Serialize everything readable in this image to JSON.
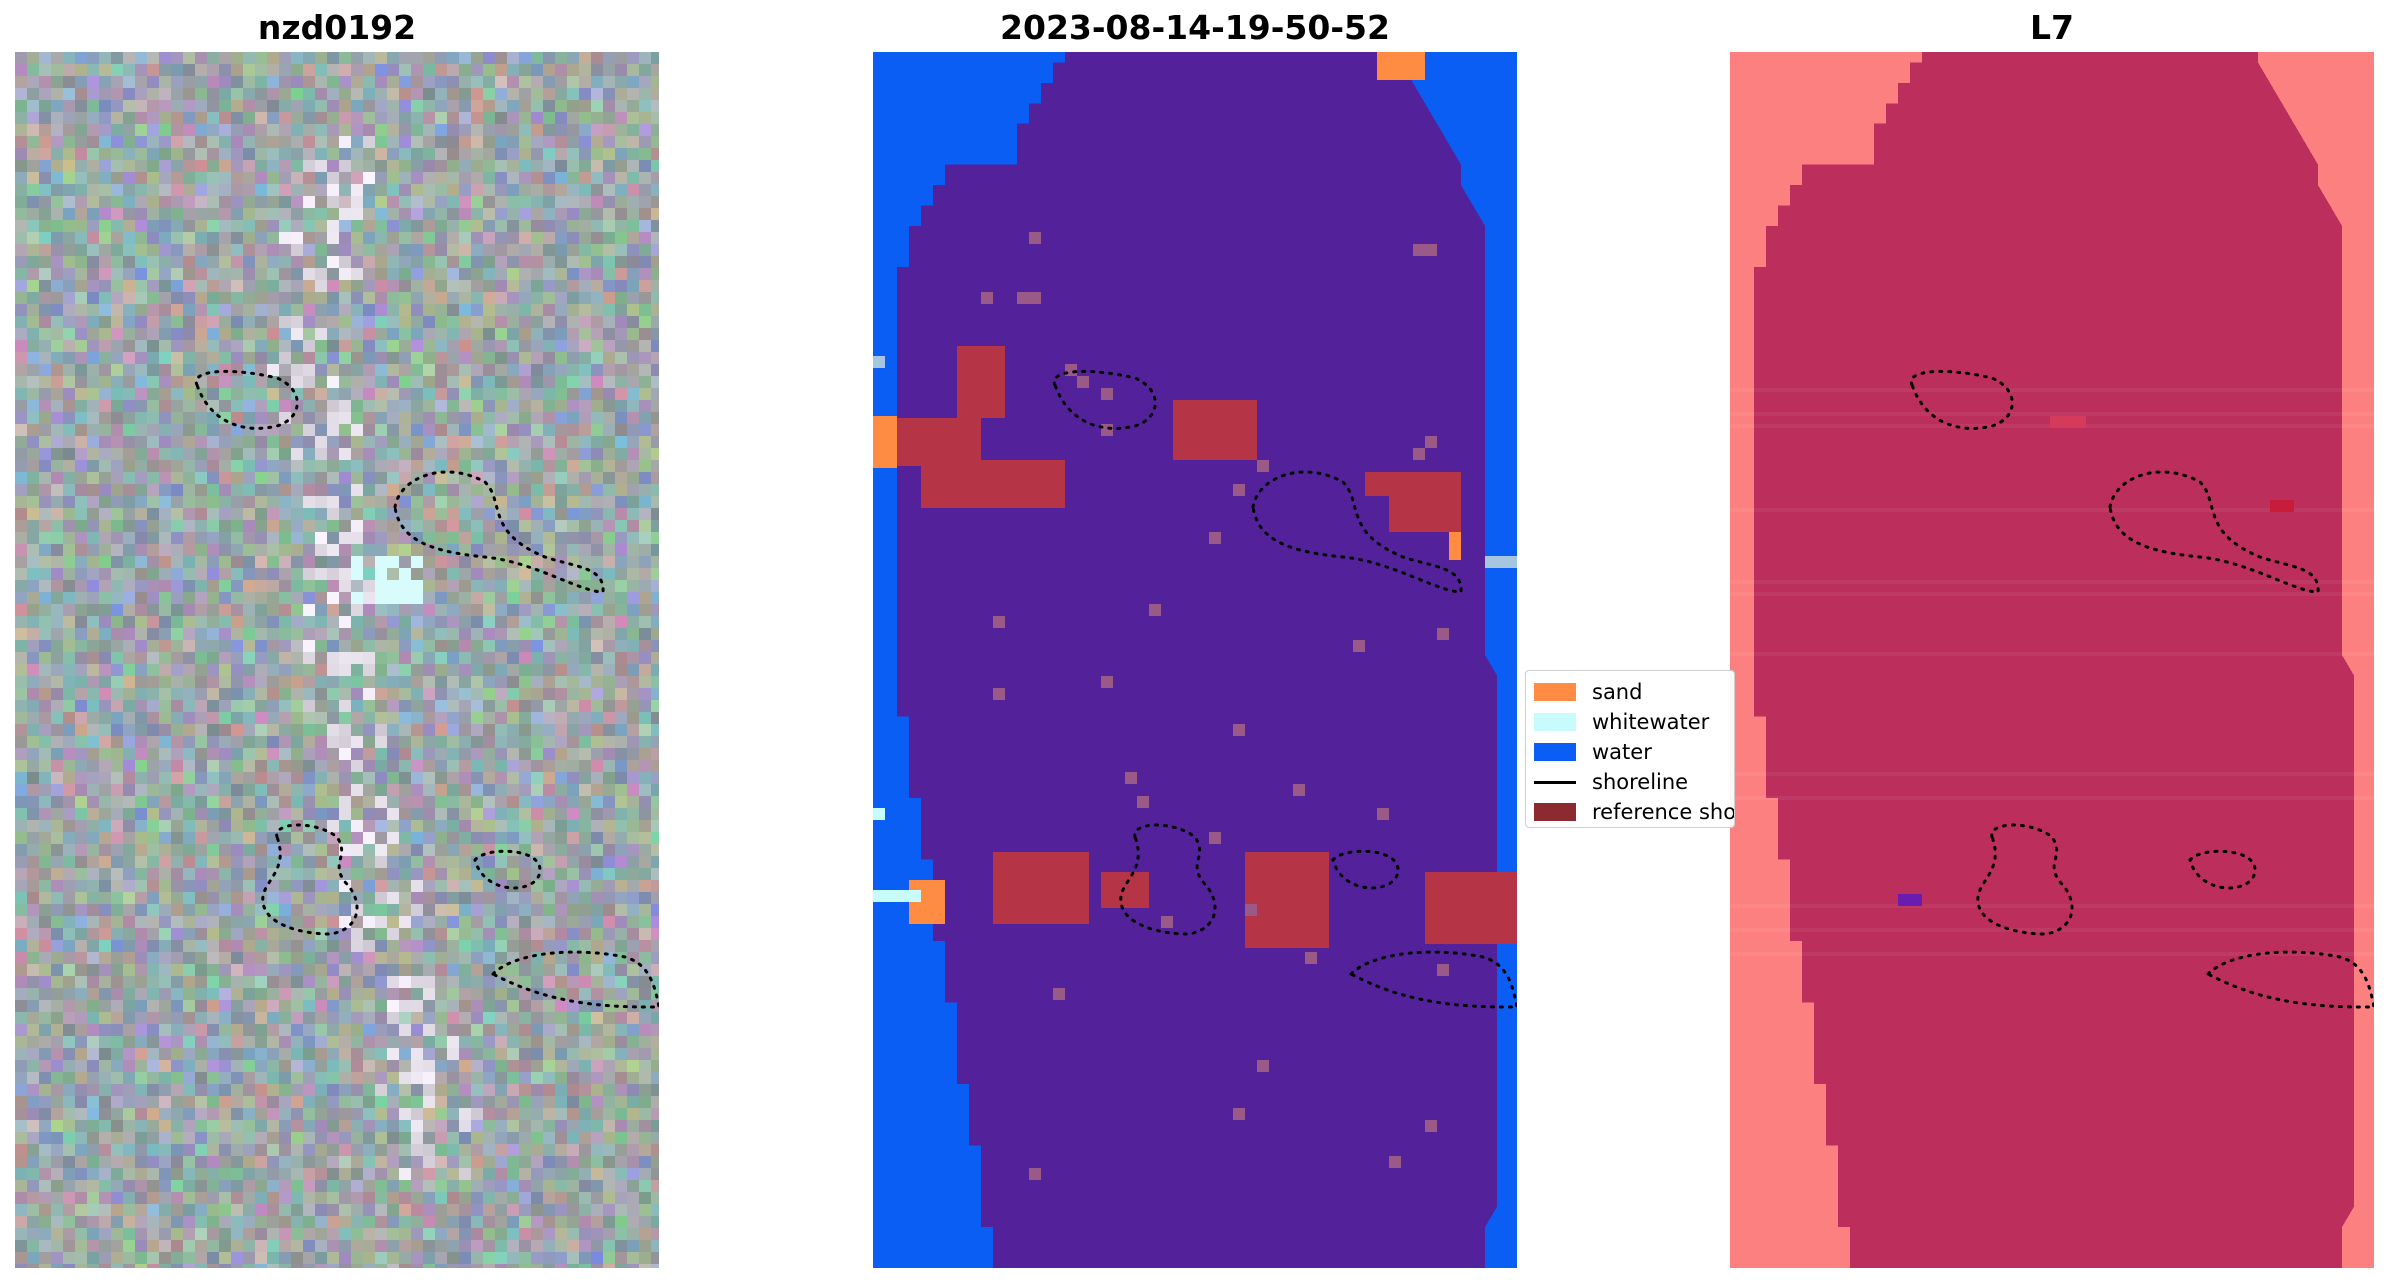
{
  "panels": [
    {
      "title": "nzd0192"
    },
    {
      "title": "2023-08-14-19-50-52"
    },
    {
      "title": "L7"
    }
  ],
  "legend": {
    "items": [
      {
        "label": "sand",
        "color": "#ff8c42",
        "type": "swatch"
      },
      {
        "label": "whitewater",
        "color": "#c8fbfb",
        "type": "swatch"
      },
      {
        "label": "water",
        "color": "#0b5ef3",
        "type": "swatch"
      },
      {
        "label": "shoreline",
        "color": "#000000",
        "type": "line"
      },
      {
        "label": "reference shoreline",
        "color": "#8b2a2f",
        "type": "swatch"
      }
    ]
  },
  "colors": {
    "class_sand": "#ff8c42",
    "class_whitewater": "#c8fbfb",
    "class_water": "#0b5ef3",
    "class_land": "#53229a",
    "class_shoreline_red": "#b53446",
    "l7_outside": "#fd8080",
    "l7_inside": "#bc2f5d"
  }
}
